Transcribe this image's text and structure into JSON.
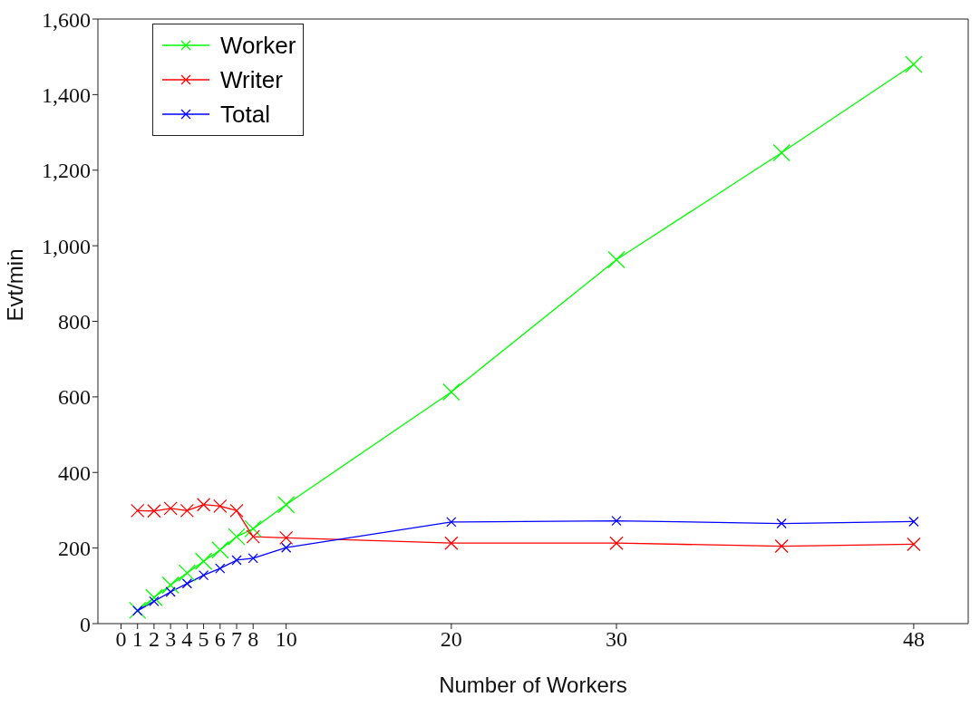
{
  "chart_data": {
    "type": "line",
    "xlabel": "Number of Workers",
    "ylabel": "Evt/min",
    "x": [
      1,
      2,
      3,
      4,
      5,
      6,
      7,
      8,
      10,
      20,
      30,
      40,
      48
    ],
    "series": [
      {
        "name": "Worker",
        "color": "#00ff00",
        "values": [
          35,
          69,
          102,
          134,
          165,
          195,
          230,
          251,
          315,
          613,
          963,
          1246,
          1480
        ]
      },
      {
        "name": "Writer",
        "color": "#ff0000",
        "values": [
          299,
          298,
          305,
          299,
          315,
          311,
          299,
          230,
          227,
          213,
          213,
          205,
          210
        ]
      },
      {
        "name": "Total",
        "color": "#0000ff",
        "values": [
          34,
          59,
          84,
          106,
          128,
          146,
          168,
          173,
          201,
          269,
          272,
          265,
          270
        ]
      }
    ],
    "xlim": [
      -1.4,
      51.3
    ],
    "xticks": [
      0,
      1,
      2,
      3,
      4,
      5,
      6,
      7,
      8,
      10,
      20,
      30,
      48
    ],
    "ylim": [
      0,
      1600
    ],
    "yticks": [
      0,
      200,
      400,
      600,
      800,
      {
        "value": 1000,
        "label": "1,000"
      },
      {
        "value": 1200,
        "label": "1,200"
      },
      {
        "value": 1400,
        "label": "1,400"
      },
      {
        "value": 1600,
        "label": "1,600"
      }
    ],
    "grid": false,
    "legend": "top left",
    "marker": "cross",
    "line_style": "solid"
  }
}
